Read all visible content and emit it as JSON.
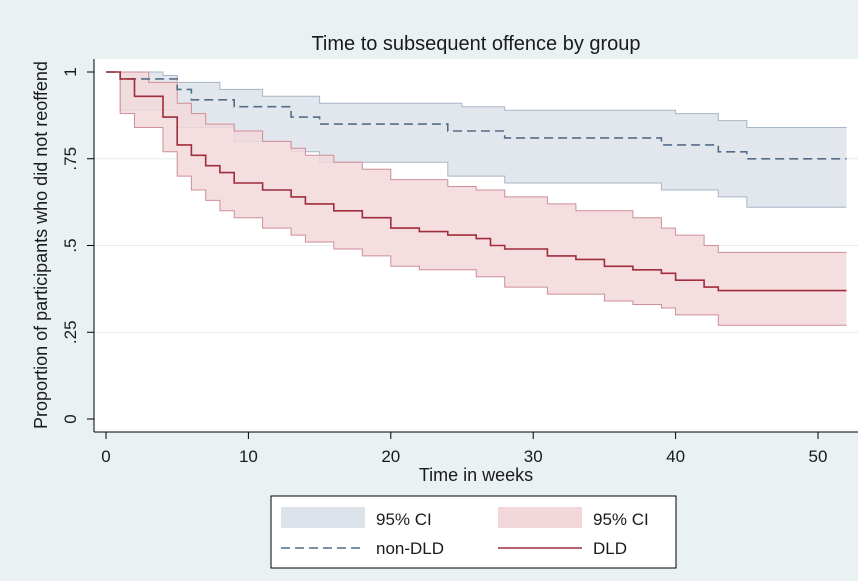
{
  "chart_data": {
    "type": "line",
    "title": "Time to subsequent offence by group",
    "xlabel": "Time in weeks",
    "ylabel": "Proportion of participants who did not reoffend",
    "xlim": [
      0,
      52
    ],
    "ylim": [
      0,
      1
    ],
    "x_ticks": [
      "0",
      "10",
      "20",
      "30",
      "40",
      "50"
    ],
    "y_ticks": [
      "0",
      ".25",
      ".5",
      ".75",
      "1"
    ],
    "grid": true,
    "legend_position": "bottom",
    "colors": {
      "dld_line": "#a02c3c",
      "dld_band": "#f2d8da",
      "dld_band_edge": "#cf8e98",
      "nondld_line": "#546d86",
      "nondld_band": "#dde3ea",
      "nondld_band_edge": "#a9b6c5",
      "plot_background": "#ffffff",
      "outer_background": "#eaf1f3"
    },
    "series": [
      {
        "name": "non-DLD",
        "style": "dashed",
        "points": [
          [
            0,
            1
          ],
          [
            1,
            1
          ],
          [
            1,
            0.98
          ],
          [
            5,
            0.98
          ],
          [
            5,
            0.95
          ],
          [
            6,
            0.95
          ],
          [
            6,
            0.92
          ],
          [
            9,
            0.92
          ],
          [
            9,
            0.9
          ],
          [
            13,
            0.9
          ],
          [
            13,
            0.87
          ],
          [
            15,
            0.87
          ],
          [
            15,
            0.85
          ],
          [
            24,
            0.85
          ],
          [
            24,
            0.83
          ],
          [
            28,
            0.83
          ],
          [
            28,
            0.81
          ],
          [
            39,
            0.81
          ],
          [
            39,
            0.79
          ],
          [
            43,
            0.79
          ],
          [
            43,
            0.77
          ],
          [
            45,
            0.77
          ],
          [
            45,
            0.75
          ],
          [
            52,
            0.75
          ]
        ],
        "ci_upper": [
          [
            0,
            1
          ],
          [
            1,
            1
          ],
          [
            4,
            1
          ],
          [
            4,
            0.99
          ],
          [
            5,
            0.99
          ],
          [
            5,
            0.97
          ],
          [
            8,
            0.97
          ],
          [
            8,
            0.95
          ],
          [
            11,
            0.95
          ],
          [
            11,
            0.93
          ],
          [
            15,
            0.93
          ],
          [
            15,
            0.91
          ],
          [
            25,
            0.91
          ],
          [
            25,
            0.9
          ],
          [
            28,
            0.9
          ],
          [
            28,
            0.89
          ],
          [
            40,
            0.89
          ],
          [
            40,
            0.88
          ],
          [
            43,
            0.88
          ],
          [
            43,
            0.86
          ],
          [
            45,
            0.86
          ],
          [
            45,
            0.84
          ],
          [
            52,
            0.84
          ]
        ],
        "ci_lower": [
          [
            0,
            1
          ],
          [
            1,
            1
          ],
          [
            1,
            0.89
          ],
          [
            5,
            0.89
          ],
          [
            5,
            0.84
          ],
          [
            9,
            0.84
          ],
          [
            9,
            0.8
          ],
          [
            13,
            0.8
          ],
          [
            13,
            0.77
          ],
          [
            15,
            0.77
          ],
          [
            15,
            0.74
          ],
          [
            24,
            0.74
          ],
          [
            24,
            0.7
          ],
          [
            28,
            0.7
          ],
          [
            28,
            0.68
          ],
          [
            39,
            0.68
          ],
          [
            39,
            0.66
          ],
          [
            43,
            0.66
          ],
          [
            43,
            0.64
          ],
          [
            45,
            0.64
          ],
          [
            45,
            0.61
          ],
          [
            52,
            0.61
          ]
        ]
      },
      {
        "name": "DLD",
        "style": "solid",
        "points": [
          [
            0,
            1
          ],
          [
            1,
            1
          ],
          [
            1,
            0.98
          ],
          [
            2,
            0.98
          ],
          [
            2,
            0.93
          ],
          [
            4,
            0.93
          ],
          [
            4,
            0.87
          ],
          [
            5,
            0.87
          ],
          [
            5,
            0.79
          ],
          [
            6,
            0.79
          ],
          [
            6,
            0.76
          ],
          [
            7,
            0.76
          ],
          [
            7,
            0.73
          ],
          [
            8,
            0.73
          ],
          [
            8,
            0.71
          ],
          [
            9,
            0.71
          ],
          [
            9,
            0.68
          ],
          [
            11,
            0.68
          ],
          [
            11,
            0.66
          ],
          [
            13,
            0.66
          ],
          [
            13,
            0.64
          ],
          [
            14,
            0.64
          ],
          [
            14,
            0.62
          ],
          [
            16,
            0.62
          ],
          [
            16,
            0.6
          ],
          [
            18,
            0.6
          ],
          [
            18,
            0.58
          ],
          [
            20,
            0.58
          ],
          [
            20,
            0.55
          ],
          [
            22,
            0.55
          ],
          [
            22,
            0.54
          ],
          [
            24,
            0.54
          ],
          [
            24,
            0.53
          ],
          [
            26,
            0.53
          ],
          [
            26,
            0.52
          ],
          [
            27,
            0.52
          ],
          [
            27,
            0.5
          ],
          [
            28,
            0.5
          ],
          [
            28,
            0.49
          ],
          [
            31,
            0.49
          ],
          [
            31,
            0.47
          ],
          [
            33,
            0.47
          ],
          [
            33,
            0.46
          ],
          [
            35,
            0.46
          ],
          [
            35,
            0.44
          ],
          [
            37,
            0.44
          ],
          [
            37,
            0.43
          ],
          [
            39,
            0.43
          ],
          [
            39,
            0.42
          ],
          [
            40,
            0.42
          ],
          [
            40,
            0.4
          ],
          [
            42,
            0.4
          ],
          [
            42,
            0.38
          ],
          [
            43,
            0.38
          ],
          [
            43,
            0.37
          ],
          [
            52,
            0.37
          ]
        ],
        "ci_upper": [
          [
            0,
            1
          ],
          [
            1,
            1
          ],
          [
            3,
            1
          ],
          [
            3,
            0.97
          ],
          [
            5,
            0.97
          ],
          [
            5,
            0.91
          ],
          [
            6,
            0.91
          ],
          [
            6,
            0.88
          ],
          [
            7,
            0.88
          ],
          [
            7,
            0.85
          ],
          [
            9,
            0.85
          ],
          [
            9,
            0.83
          ],
          [
            11,
            0.83
          ],
          [
            11,
            0.8
          ],
          [
            13,
            0.8
          ],
          [
            13,
            0.78
          ],
          [
            14,
            0.78
          ],
          [
            14,
            0.76
          ],
          [
            16,
            0.76
          ],
          [
            16,
            0.74
          ],
          [
            18,
            0.74
          ],
          [
            18,
            0.72
          ],
          [
            20,
            0.72
          ],
          [
            20,
            0.69
          ],
          [
            24,
            0.69
          ],
          [
            24,
            0.67
          ],
          [
            26,
            0.67
          ],
          [
            26,
            0.66
          ],
          [
            28,
            0.66
          ],
          [
            28,
            0.64
          ],
          [
            31,
            0.64
          ],
          [
            31,
            0.62
          ],
          [
            33,
            0.62
          ],
          [
            33,
            0.6
          ],
          [
            37,
            0.6
          ],
          [
            37,
            0.58
          ],
          [
            39,
            0.58
          ],
          [
            39,
            0.55
          ],
          [
            40,
            0.55
          ],
          [
            40,
            0.53
          ],
          [
            42,
            0.53
          ],
          [
            42,
            0.5
          ],
          [
            43,
            0.5
          ],
          [
            43,
            0.48
          ],
          [
            52,
            0.48
          ]
        ],
        "ci_lower": [
          [
            0,
            1
          ],
          [
            1,
            1
          ],
          [
            1,
            0.88
          ],
          [
            2,
            0.88
          ],
          [
            2,
            0.84
          ],
          [
            4,
            0.84
          ],
          [
            4,
            0.77
          ],
          [
            5,
            0.77
          ],
          [
            5,
            0.7
          ],
          [
            6,
            0.7
          ],
          [
            6,
            0.66
          ],
          [
            7,
            0.66
          ],
          [
            7,
            0.63
          ],
          [
            8,
            0.63
          ],
          [
            8,
            0.6
          ],
          [
            9,
            0.6
          ],
          [
            9,
            0.58
          ],
          [
            11,
            0.58
          ],
          [
            11,
            0.55
          ],
          [
            13,
            0.55
          ],
          [
            13,
            0.53
          ],
          [
            14,
            0.53
          ],
          [
            14,
            0.51
          ],
          [
            16,
            0.51
          ],
          [
            16,
            0.49
          ],
          [
            18,
            0.49
          ],
          [
            18,
            0.47
          ],
          [
            20,
            0.47
          ],
          [
            20,
            0.44
          ],
          [
            22,
            0.44
          ],
          [
            22,
            0.43
          ],
          [
            26,
            0.43
          ],
          [
            26,
            0.41
          ],
          [
            28,
            0.41
          ],
          [
            28,
            0.38
          ],
          [
            31,
            0.38
          ],
          [
            31,
            0.36
          ],
          [
            35,
            0.36
          ],
          [
            35,
            0.34
          ],
          [
            37,
            0.34
          ],
          [
            37,
            0.33
          ],
          [
            39,
            0.33
          ],
          [
            39,
            0.32
          ],
          [
            40,
            0.32
          ],
          [
            40,
            0.3
          ],
          [
            43,
            0.3
          ],
          [
            43,
            0.27
          ],
          [
            52,
            0.27
          ]
        ]
      }
    ],
    "legend": {
      "nondld_ci_label": "95% CI",
      "dld_ci_label": "95% CI",
      "nondld_line_label": "non-DLD",
      "dld_line_label": "DLD"
    }
  }
}
